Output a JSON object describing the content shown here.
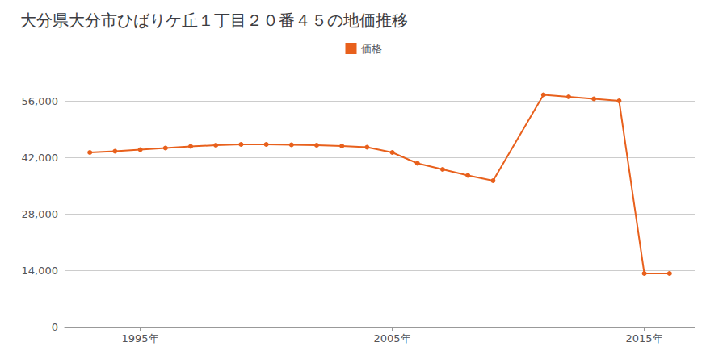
{
  "chart_data": {
    "type": "line",
    "title": "大分県大分市ひばりケ丘１丁目２０番４５の地価推移",
    "x": [
      1993,
      1994,
      1995,
      1996,
      1997,
      1998,
      1999,
      2000,
      2001,
      2002,
      2003,
      2004,
      2005,
      2006,
      2007,
      2008,
      2009,
      2011,
      2012,
      2013,
      2014,
      2015,
      2016
    ],
    "series": [
      {
        "name": "価格",
        "color": "#e8601c",
        "marker": "circle",
        "values": [
          43200,
          43500,
          43900,
          44300,
          44700,
          45000,
          45200,
          45200,
          45100,
          45000,
          44800,
          44500,
          43200,
          40500,
          39000,
          37500,
          36200,
          57500,
          57000,
          56500,
          56000,
          13200,
          13200
        ]
      }
    ],
    "xlim": [
      1992,
      2017
    ],
    "xticks": [
      {
        "value": 1995,
        "label": "1995年"
      },
      {
        "value": 2005,
        "label": "2005年"
      },
      {
        "value": 2015,
        "label": "2015年"
      }
    ],
    "ylim": [
      0,
      63000
    ],
    "yticks": [
      0,
      {
        "value": 14000,
        "label": "14,000"
      },
      {
        "value": 28000,
        "label": "28,000"
      },
      {
        "value": 42000,
        "label": "42,000"
      },
      {
        "value": 56000,
        "label": "56,000"
      }
    ],
    "grid": "y",
    "legend": "top"
  }
}
